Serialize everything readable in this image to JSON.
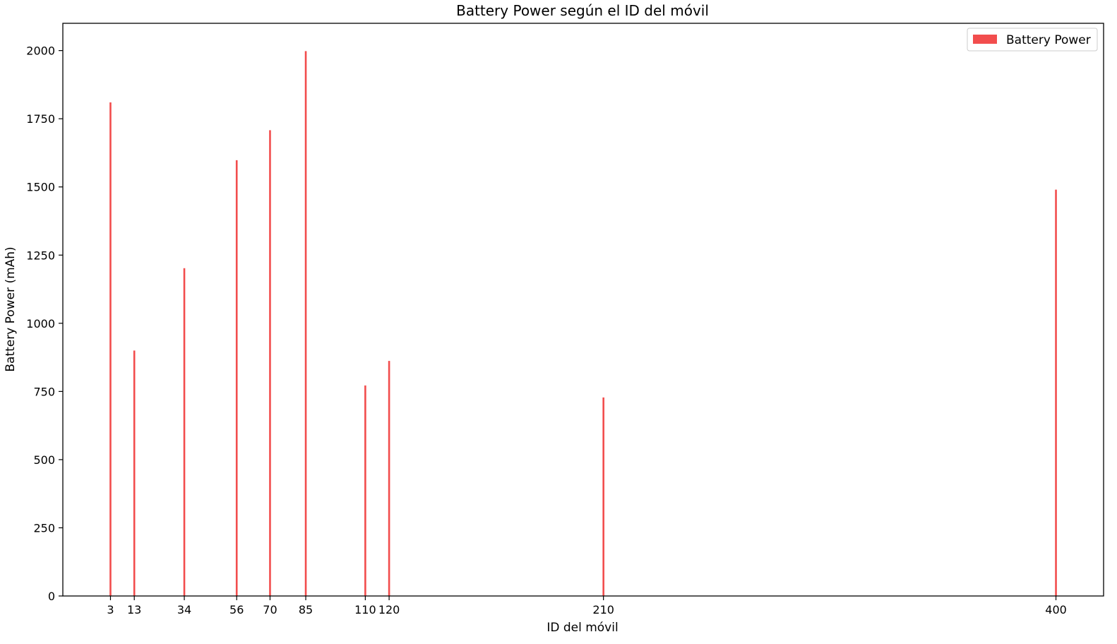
{
  "chart_data": {
    "type": "bar",
    "title": "Battery Power según el ID del móvil",
    "xlabel": "ID del móvil",
    "ylabel": "Battery Power (mAh)",
    "x": [
      3,
      13,
      34,
      56,
      70,
      85,
      110,
      120,
      210,
      400
    ],
    "x_tick_labels": [
      "3",
      "13",
      "34",
      "56",
      "70",
      "85",
      "110",
      "120",
      "210",
      "400"
    ],
    "series": [
      {
        "name": "Battery Power",
        "color": "#f24d4d",
        "values": [
          1810,
          900,
          1202,
          1598,
          1708,
          1998,
          772,
          862,
          728,
          1490
        ]
      }
    ],
    "xlim": [
      -17,
      420
    ],
    "ylim": [
      0,
      2100
    ],
    "yticks": [
      0,
      250,
      500,
      750,
      1000,
      1250,
      1500,
      1750,
      2000
    ],
    "ytick_labels": [
      "0",
      "250",
      "500",
      "750",
      "1000",
      "1250",
      "1500",
      "1750",
      "2000"
    ],
    "grid": false,
    "legend_position": "top-right"
  }
}
